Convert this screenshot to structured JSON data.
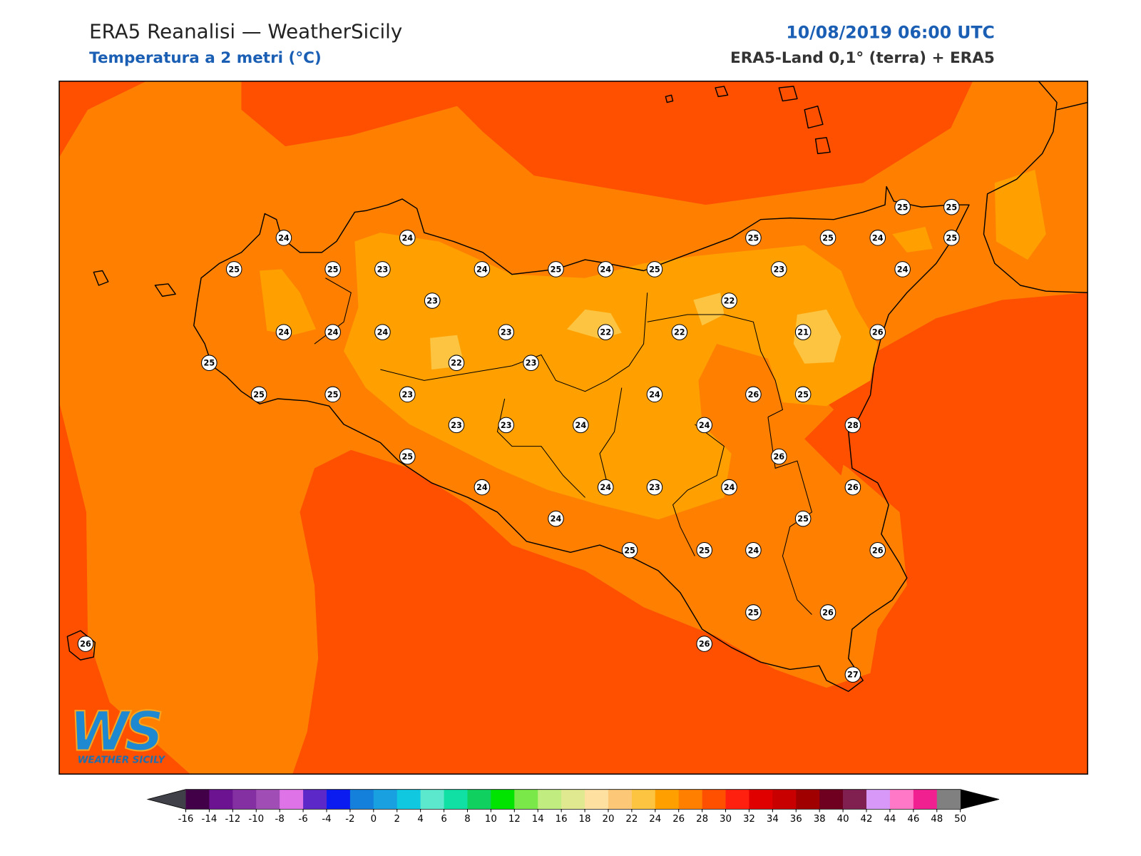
{
  "header": {
    "title": "ERA5 Reanalisi — WeatherSicily",
    "subtitle": "Temperatura a 2 metri (°C)",
    "datetime": "10/08/2019 06:00 UTC",
    "source": "ERA5-Land 0,1° (terra) + ERA5"
  },
  "stations": {
    "values": [
      24,
      24,
      25,
      25,
      23,
      24,
      25,
      24,
      25,
      25,
      25,
      24,
      25,
      25,
      25,
      23,
      24,
      23,
      22,
      24,
      24,
      24,
      23,
      22,
      22,
      21,
      26,
      25,
      22,
      23,
      25,
      25,
      23,
      24,
      26,
      25,
      23,
      23,
      24,
      24,
      28,
      25,
      26,
      24,
      24,
      23,
      24,
      26,
      24,
      25,
      25,
      25,
      24,
      26,
      25,
      26,
      26,
      27,
      26
    ]
  },
  "colorbar": {
    "ticks": [
      -16,
      -14,
      -12,
      -10,
      -8,
      -6,
      -4,
      -2,
      0,
      2,
      4,
      6,
      8,
      10,
      12,
      14,
      16,
      18,
      20,
      22,
      24,
      26,
      28,
      30,
      32,
      34,
      36,
      38,
      40,
      42,
      44,
      46,
      48,
      50
    ],
    "colors": [
      "#420048",
      "#6b1391",
      "#8430a3",
      "#a04eb6",
      "#de73e8",
      "#5c28c8",
      "#0a1cf0",
      "#1480dc",
      "#18a0e0",
      "#10c8e0",
      "#5ce8cc",
      "#10e0a4",
      "#10d060",
      "#00e400",
      "#7ae848",
      "#c0ec80",
      "#e0e890",
      "#fee0a0",
      "#fcc878",
      "#fcc440",
      "#ffa000",
      "#ff8000",
      "#ff5000",
      "#ff2010",
      "#e00000",
      "#c80000",
      "#a00000",
      "#700020",
      "#802050",
      "#d898f8",
      "#ff78c8",
      "#f02090",
      "#808080"
    ],
    "under_color": "#404048",
    "over_color": "#000000"
  },
  "logo": {
    "mark": "WS",
    "text": "WEATHER SICILY"
  }
}
